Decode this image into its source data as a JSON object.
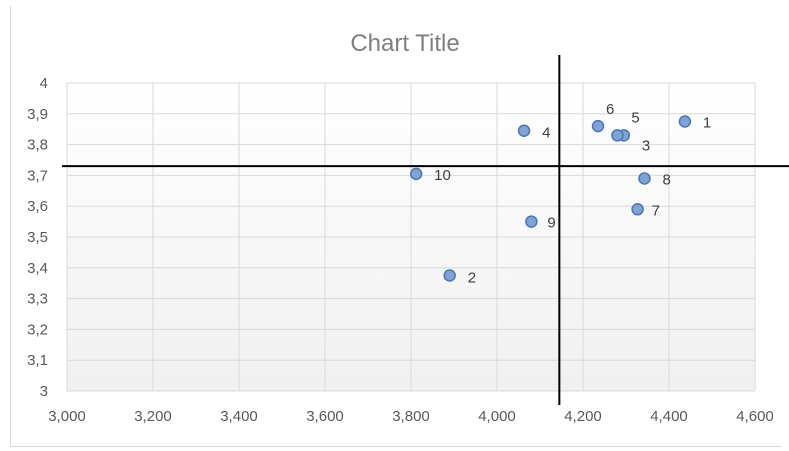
{
  "chart_data": {
    "type": "scatter",
    "title": "Chart Title",
    "xlabel": "",
    "ylabel": "",
    "xlim": [
      3000,
      4600
    ],
    "ylim": [
      3,
      4
    ],
    "x_ticks": [
      "3,000",
      "3,200",
      "3,400",
      "3,600",
      "3,800",
      "4,000",
      "4,200",
      "4,400",
      "4,600"
    ],
    "y_ticks": [
      "3",
      "3,1",
      "3,2",
      "3,3",
      "3,4",
      "3,5",
      "3,6",
      "3,7",
      "3,8",
      "3,9",
      "4"
    ],
    "grid": true,
    "legend": "none",
    "crosshair": {
      "x": 4145,
      "y": 3.73
    },
    "points": [
      {
        "label": "1",
        "x": 4437,
        "y": 3.875
      },
      {
        "label": "2",
        "x": 3890,
        "y": 3.375
      },
      {
        "label": "3",
        "x": 4295,
        "y": 3.83
      },
      {
        "label": "4",
        "x": 4063,
        "y": 3.845
      },
      {
        "label": "5",
        "x": 4280,
        "y": 3.83
      },
      {
        "label": "6",
        "x": 4235,
        "y": 3.86
      },
      {
        "label": "7",
        "x": 4327,
        "y": 3.59
      },
      {
        "label": "8",
        "x": 4343,
        "y": 3.69
      },
      {
        "label": "9",
        "x": 4080,
        "y": 3.55
      },
      {
        "label": "10",
        "x": 3812,
        "y": 3.705
      }
    ],
    "colors": {
      "marker_fill": "#7ea3d4",
      "marker_stroke": "#4a76b5",
      "gridline": "#d9d9d9",
      "crosshair": "#000000"
    }
  }
}
